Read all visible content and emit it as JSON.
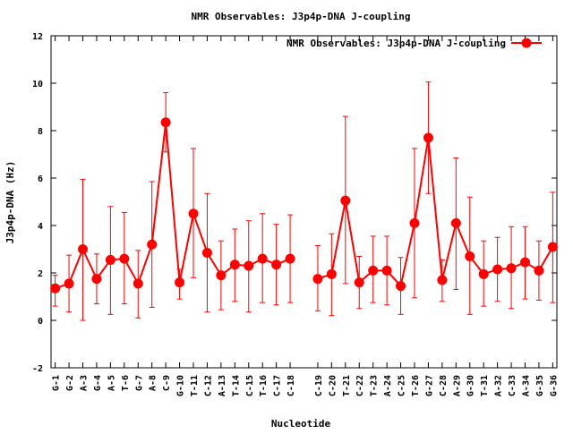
{
  "chart_data": {
    "type": "line",
    "title": "NMR Observables: J3p4p-DNA J-coupling",
    "xlabel": "Nucleotide",
    "ylabel": "J3p4p-DNA (Hz)",
    "ylim": [
      -2,
      12
    ],
    "yticks": [
      -2,
      0,
      2,
      4,
      6,
      8,
      10,
      12
    ],
    "grid": false,
    "legend_position": "top-right",
    "color": "#ff0000",
    "categories": [
      "G-1",
      "G-2",
      "A-3",
      "G-4",
      "A-5",
      "T-6",
      "G-7",
      "A-8",
      "C-9",
      "G-10",
      "T-11",
      "C-12",
      "A-13",
      "T-14",
      "C-15",
      "T-16",
      "C-17",
      "C-18",
      "C-19",
      "C-20",
      "T-21",
      "C-22",
      "T-23",
      "A-24",
      "C-25",
      "T-26",
      "G-27",
      "C-28",
      "A-29",
      "G-30",
      "T-31",
      "A-32",
      "C-33",
      "A-34",
      "G-35",
      "G-36"
    ],
    "x_positions": [
      1,
      2,
      3,
      4,
      5,
      6,
      7,
      8,
      9,
      10,
      11,
      12,
      13,
      14,
      15,
      16,
      17,
      18,
      20,
      21,
      22,
      23,
      24,
      25,
      26,
      27,
      28,
      29,
      30,
      31,
      32,
      33,
      34,
      35,
      36,
      37
    ],
    "series": [
      {
        "name": "NMR Observables: J3p4p-DNA J-coupling",
        "values": [
          1.35,
          1.55,
          3.0,
          1.75,
          2.55,
          2.6,
          1.55,
          3.2,
          8.35,
          1.6,
          4.5,
          2.85,
          1.9,
          2.35,
          2.3,
          2.6,
          2.35,
          2.6,
          1.75,
          1.95,
          5.05,
          1.6,
          2.1,
          2.1,
          1.45,
          4.1,
          7.7,
          1.7,
          4.1,
          2.7,
          1.95,
          2.15,
          2.2,
          2.45,
          2.1,
          3.1
        ],
        "err_low": [
          0.6,
          0.35,
          0.0,
          0.7,
          0.25,
          0.7,
          0.1,
          0.55,
          7.1,
          0.9,
          1.8,
          0.35,
          0.45,
          0.8,
          0.35,
          0.75,
          0.65,
          0.75,
          0.4,
          0.2,
          1.55,
          0.5,
          0.75,
          0.65,
          0.25,
          0.95,
          5.35,
          0.8,
          1.3,
          0.25,
          0.6,
          0.8,
          0.5,
          0.9,
          0.85,
          0.75
        ],
        "err_high": [
          1.9,
          2.75,
          5.95,
          2.8,
          4.8,
          4.55,
          2.95,
          5.85,
          9.6,
          2.15,
          7.25,
          5.35,
          3.35,
          3.85,
          4.2,
          4.5,
          4.05,
          4.45,
          3.15,
          3.65,
          8.6,
          2.7,
          3.55,
          3.55,
          2.65,
          7.25,
          10.05,
          2.55,
          6.85,
          5.2,
          3.35,
          3.5,
          3.95,
          3.95,
          3.35,
          5.4
        ]
      }
    ]
  }
}
